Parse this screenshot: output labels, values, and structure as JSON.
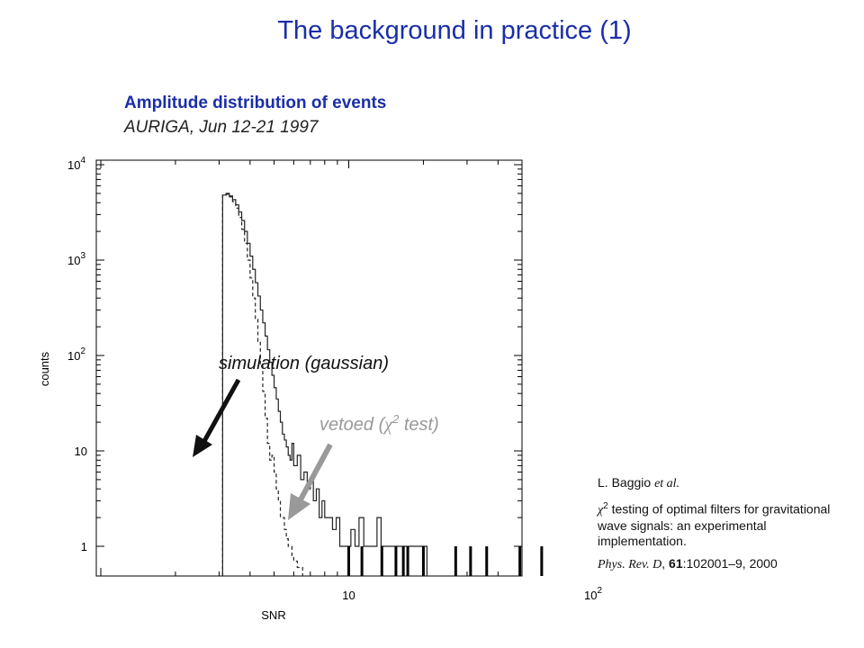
{
  "title": "The background in practice (1)",
  "subtitle": "Amplitude distribution of events",
  "subtitle2": "AURIGA, Jun 12-21 1997",
  "chart_data": {
    "type": "line",
    "x_scale": "log",
    "y_scale": "log",
    "xlim": [
      2.5,
      100
    ],
    "ylim": [
      0.6,
      10000
    ],
    "xlabel": "SNR",
    "ylabel": "counts",
    "x_ticks": [
      {
        "value": 10,
        "label": "10",
        "sup": ""
      },
      {
        "value": 100,
        "label": "10",
        "sup": "2"
      }
    ],
    "y_ticks": [
      {
        "value": 1,
        "label": "1",
        "sup": ""
      },
      {
        "value": 10,
        "label": "10",
        "sup": ""
      },
      {
        "value": 100,
        "label": "10",
        "sup": "2"
      },
      {
        "value": 1000,
        "label": "10",
        "sup": "3"
      },
      {
        "value": 10000,
        "label": "10",
        "sup": "4"
      }
    ],
    "series": [
      {
        "name": "",
        "style": "solid",
        "x": [
          3.1,
          3.2,
          3.3,
          3.4,
          3.5,
          3.6,
          3.7,
          3.8,
          3.9,
          4.0,
          4.1,
          4.2,
          4.3,
          4.4,
          4.5,
          4.6,
          4.7,
          4.8,
          4.9,
          5.0,
          5.1,
          5.2,
          5.3,
          5.4,
          5.5,
          5.6,
          5.7,
          5.8,
          5.9,
          6.0,
          6.2,
          6.4,
          6.6,
          6.8,
          7.0,
          7.2,
          7.4,
          7.6,
          7.8,
          8.0,
          8.3,
          8.6,
          8.9,
          9.2,
          9.5,
          9.8,
          10.2,
          10.6,
          11.0,
          11.5,
          12.0,
          12.5,
          13.0,
          13.5,
          14.0,
          15.0,
          16.0,
          17.0,
          18.0,
          19.0,
          20.0
        ],
        "y": [
          4800,
          5000,
          4700,
          4300,
          3800,
          3200,
          2600,
          2000,
          1500,
          1100,
          800,
          580,
          420,
          300,
          220,
          160,
          115,
          85,
          62,
          46,
          35,
          26,
          20,
          15,
          13,
          11,
          9,
          8,
          12,
          7,
          9,
          5,
          6,
          4,
          5,
          3,
          4,
          2,
          3,
          2,
          2,
          1.5,
          2,
          1,
          1,
          1,
          1.5,
          1,
          2,
          1,
          1,
          1,
          2,
          1,
          1,
          1,
          1,
          1,
          1,
          1,
          1
        ]
      },
      {
        "name": "",
        "style": "dashed",
        "x": [
          3.1,
          3.2,
          3.3,
          3.4,
          3.5,
          3.6,
          3.7,
          3.8,
          3.9,
          4.0,
          4.1,
          4.2,
          4.3,
          4.4,
          4.5,
          4.6,
          4.7,
          4.8,
          4.9,
          5.0,
          5.1,
          5.2,
          5.3,
          5.4,
          5.5,
          5.6,
          5.7,
          5.8,
          5.9,
          6.0,
          6.1,
          6.2,
          6.3
        ],
        "y": [
          4800,
          4900,
          4600,
          4100,
          3500,
          2800,
          2100,
          1500,
          1000,
          650,
          400,
          240,
          140,
          78,
          42,
          22,
          12,
          8,
          9,
          6,
          4,
          3,
          2,
          2,
          1.5,
          1.2,
          1,
          1,
          0.8,
          0.7,
          0.7,
          0.6,
          0.6
        ]
      }
    ],
    "spikes": [
      {
        "x": 10.0,
        "y": 1
      },
      {
        "x": 11.3,
        "y": 1
      },
      {
        "x": 13.6,
        "y": 1
      },
      {
        "x": 15.5,
        "y": 1
      },
      {
        "x": 16.6,
        "y": 1
      },
      {
        "x": 17.3,
        "y": 1
      },
      {
        "x": 20.0,
        "y": 1
      },
      {
        "x": 27.0,
        "y": 1
      },
      {
        "x": 31.0,
        "y": 1
      },
      {
        "x": 36.0,
        "y": 1
      },
      {
        "x": 49.0,
        "y": 1
      },
      {
        "x": 60.0,
        "y": 1
      }
    ],
    "annotations": [
      {
        "text": "simulation (gaussian)",
        "color": "#111111"
      },
      {
        "text_before": "vetoed (",
        "symbol": "χ",
        "sup": "2",
        "text_after": " test)",
        "color": "#999999"
      }
    ]
  },
  "reference": {
    "author": "L. Baggio",
    "author_etal": "et al.",
    "symbol": "χ",
    "sup": "2",
    "paper_title": "testing of optimal filters for gravitational wave signals: an experimental implementation.",
    "journal": "Phys. Rev. D",
    "volume": "61",
    "pages_year": ":102001–9, 2000"
  }
}
